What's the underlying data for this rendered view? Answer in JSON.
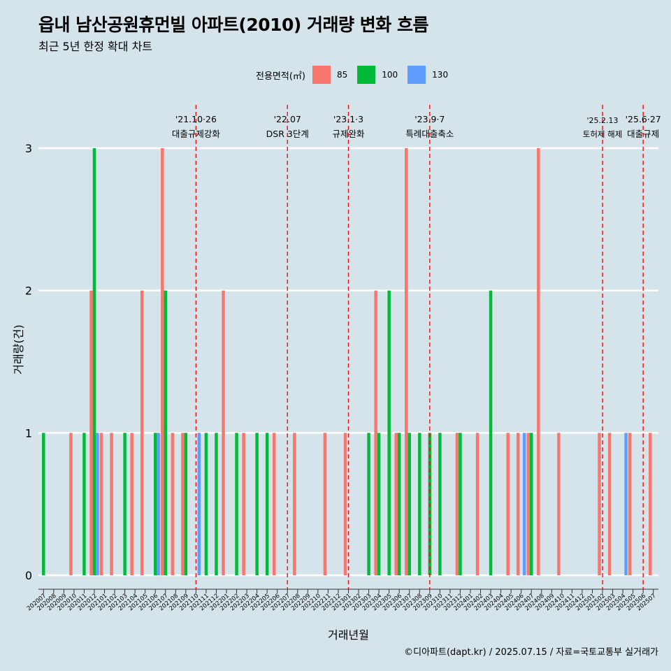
{
  "title": "읍내 남산공원휴먼빌 아파트(2010) 거래량 변화 흐름",
  "subtitle": "최근 5년 한정 확대 차트",
  "caption": "©디아파트(dapt.kr) / 2025.07.15 / 자료=국토교통부 실거래가",
  "legend": {
    "title": "전용면적(㎡)",
    "items": [
      {
        "label": "85",
        "color": "#f8766d"
      },
      {
        "label": "100",
        "color": "#00ba38"
      },
      {
        "label": "130",
        "color": "#619cff"
      }
    ]
  },
  "chart_data": {
    "type": "bar",
    "xlabel": "거래년월",
    "ylabel": "거래량(건)",
    "ylim": [
      0,
      3
    ],
    "yticks": [
      0,
      1,
      2,
      3
    ],
    "grid": true,
    "legend_position": "top",
    "categories": [
      "202007",
      "202008",
      "202009",
      "202010",
      "202011",
      "202012",
      "202101",
      "202102",
      "202103",
      "202104",
      "202105",
      "202106",
      "202107",
      "202108",
      "202109",
      "202110",
      "202111",
      "202112",
      "202201",
      "202202",
      "202203",
      "202204",
      "202205",
      "202206",
      "202207",
      "202208",
      "202209",
      "202210",
      "202211",
      "202212",
      "202301",
      "202302",
      "202303",
      "202304",
      "202305",
      "202306",
      "202307",
      "202308",
      "202309",
      "202310",
      "202311",
      "202312",
      "202401",
      "202402",
      "202403",
      "202404",
      "202405",
      "202406",
      "202407",
      "202408",
      "202409",
      "202410",
      "202411",
      "202412",
      "202501",
      "202502",
      "202503",
      "202504",
      "202505",
      "202506",
      "202507"
    ],
    "series": [
      {
        "name": "85",
        "color": "#f8766d",
        "values": [
          0,
          0,
          0,
          1,
          0,
          2,
          1,
          1,
          0,
          1,
          2,
          0,
          3,
          1,
          1,
          0,
          0,
          0,
          2,
          0,
          1,
          0,
          0,
          1,
          0,
          1,
          0,
          0,
          1,
          0,
          1,
          0,
          0,
          2,
          0,
          1,
          3,
          0,
          0,
          0,
          0,
          1,
          0,
          1,
          0,
          0,
          1,
          1,
          1,
          3,
          0,
          1,
          0,
          0,
          0,
          1,
          1,
          0,
          1,
          0,
          1
        ]
      },
      {
        "name": "100",
        "color": "#00ba38",
        "values": [
          1,
          0,
          0,
          0,
          1,
          3,
          0,
          0,
          1,
          0,
          0,
          1,
          2,
          0,
          1,
          0,
          1,
          1,
          0,
          1,
          0,
          1,
          1,
          0,
          0,
          0,
          0,
          0,
          0,
          0,
          0,
          0,
          1,
          1,
          2,
          1,
          1,
          1,
          1,
          1,
          0,
          1,
          0,
          0,
          2,
          0,
          0,
          0,
          1,
          0,
          0,
          0,
          0,
          0,
          0,
          0,
          0,
          0,
          0,
          0,
          0
        ]
      },
      {
        "name": "130",
        "color": "#619cff",
        "values": [
          0,
          0,
          0,
          0,
          0,
          1,
          0,
          0,
          0,
          0,
          0,
          1,
          0,
          0,
          0,
          1,
          0,
          0,
          0,
          0,
          0,
          0,
          0,
          0,
          0,
          0,
          0,
          0,
          0,
          0,
          0,
          0,
          0,
          0,
          0,
          0,
          0,
          0,
          0,
          0,
          0,
          0,
          0,
          0,
          0,
          0,
          0,
          1,
          0,
          0,
          0,
          0,
          0,
          0,
          0,
          0,
          0,
          1,
          0,
          0,
          0
        ]
      }
    ],
    "annotations": [
      {
        "month": "202110",
        "date": "'21.10·26",
        "text": "대출규제강화"
      },
      {
        "month": "202207",
        "date": "'22.07",
        "text": "DSR 3단계"
      },
      {
        "month": "202301",
        "date": "'23.1·3",
        "text": "규제완화"
      },
      {
        "month": "202309",
        "date": "'23.9·7",
        "text": "특례대출축소"
      },
      {
        "month": "202502",
        "date": "'25.2.13",
        "text": "토허제 해제"
      },
      {
        "month": "202506",
        "date": "'25.6·27",
        "text": "대출규제"
      }
    ]
  }
}
